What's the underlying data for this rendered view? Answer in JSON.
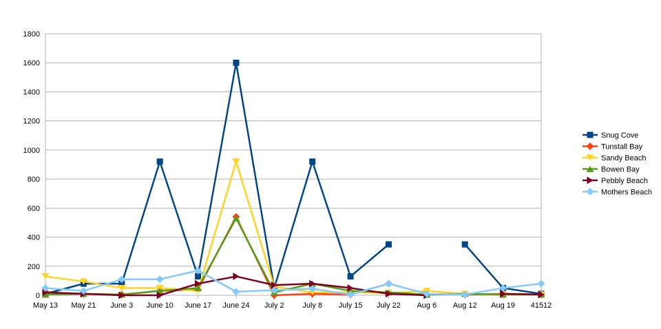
{
  "chart_data": {
    "type": "line",
    "title": "",
    "xlabel": "",
    "ylabel": "",
    "ylim": [
      0,
      1800
    ],
    "yticks": [
      0,
      200,
      400,
      600,
      800,
      1000,
      1200,
      1400,
      1600,
      1800
    ],
    "grid": "horizontal",
    "legend_position": "right",
    "categories": [
      "May 13",
      "May 21",
      "June 3",
      "June 10",
      "June 17",
      "June 24",
      "July 2",
      "July 8",
      "July 15",
      "July 22",
      "Aug 6",
      "Aug 12",
      "Aug 19",
      "41512"
    ],
    "series": [
      {
        "name": "Snug Cove",
        "color": "#004586",
        "marker": "square",
        "values": [
          10,
          80,
          80,
          920,
          130,
          1600,
          50,
          920,
          130,
          350,
          null,
          350,
          50,
          10
        ]
      },
      {
        "name": "Tunstall Bay",
        "color": "#ff420e",
        "marker": "diamond",
        "values": [
          20,
          10,
          5,
          30,
          40,
          540,
          0,
          10,
          5,
          80,
          null,
          5,
          10,
          5
        ]
      },
      {
        "name": "Sandy Beach",
        "color": "#ffd320",
        "marker": "triangle-down",
        "values": [
          130,
          95,
          50,
          50,
          30,
          920,
          60,
          20,
          20,
          15,
          30,
          10,
          5,
          5
        ]
      },
      {
        "name": "Bowen Bay",
        "color": "#579d1c",
        "marker": "triangle-up",
        "values": [
          5,
          10,
          5,
          30,
          50,
          530,
          20,
          80,
          30,
          20,
          5,
          10,
          5,
          5
        ]
      },
      {
        "name": "Pebbly Beach",
        "color": "#7e0021",
        "marker": "triangle-right",
        "values": [
          20,
          10,
          0,
          0,
          80,
          130,
          70,
          80,
          50,
          10,
          0,
          null,
          10,
          5
        ]
      },
      {
        "name": "Mothers Beach",
        "color": "#83caff",
        "marker": "diamond",
        "values": [
          50,
          30,
          110,
          110,
          170,
          25,
          35,
          45,
          5,
          80,
          10,
          5,
          50,
          80
        ]
      }
    ]
  }
}
